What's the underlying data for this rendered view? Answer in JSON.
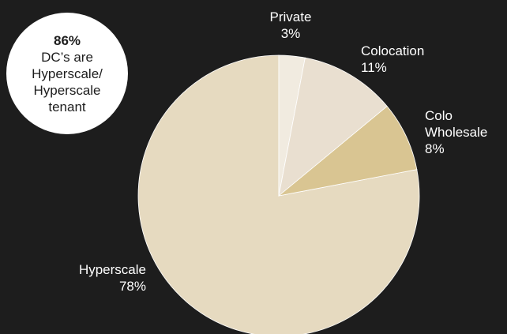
{
  "chart_data": {
    "type": "pie",
    "title": "",
    "categories": [
      "Hyperscale",
      "Private",
      "Colocation",
      "Colo Wholesale"
    ],
    "values": [
      78,
      3,
      11,
      8
    ],
    "value_labels": [
      "78%",
      "3%",
      "11%",
      "8%"
    ],
    "label_lines": [
      [
        "Hyperscale"
      ],
      [
        "Private"
      ],
      [
        "Colocation"
      ],
      [
        "Colo",
        "Wholesale"
      ]
    ],
    "colors": [
      "#e6dac0",
      "#f1ebe0",
      "#e9dfd0",
      "#d9c592"
    ],
    "legend": "none"
  },
  "callout": {
    "value": "86%",
    "text": "DC’s are Hyperscale/ Hyperscale tenant"
  },
  "colors": {
    "background": "#1d1d1d",
    "label_text": "#ffffff",
    "callout_fill": "#ffffff",
    "callout_text": "#1d1d1d"
  }
}
